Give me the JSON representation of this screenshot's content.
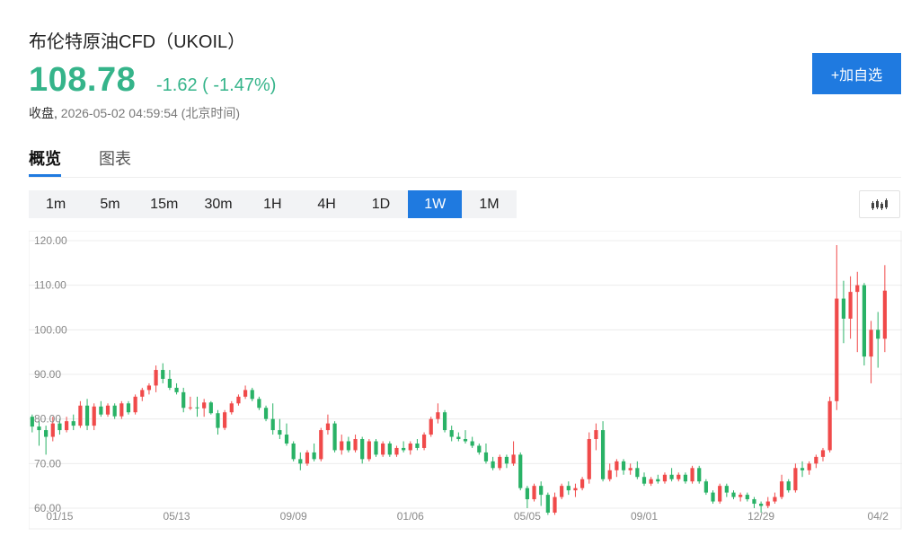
{
  "header": {
    "title": "布伦特原油CFD（UKOIL）",
    "price": "108.78",
    "change": "-1.62 ( -1.47%)",
    "status_label": "收盘,",
    "timestamp": "2026-05-02 04:59:54 (北京时间)",
    "add_watchlist_label": "+加自选"
  },
  "tabs": [
    {
      "label": "概览",
      "active": true
    },
    {
      "label": "图表",
      "active": false
    }
  ],
  "intervals": [
    {
      "label": "1m",
      "active": false
    },
    {
      "label": "5m",
      "active": false
    },
    {
      "label": "15m",
      "active": false
    },
    {
      "label": "30m",
      "active": false
    },
    {
      "label": "1H",
      "active": false
    },
    {
      "label": "4H",
      "active": false
    },
    {
      "label": "1D",
      "active": false
    },
    {
      "label": "1W",
      "active": true
    },
    {
      "label": "1M",
      "active": false
    }
  ],
  "colors": {
    "up": "#f04a4a",
    "down": "#29b266",
    "price_down": "#35b48a",
    "accent": "#1f7ae0",
    "grid": "#ececec",
    "axis_text": "#888888"
  },
  "icons": {
    "chart_type": "candlestick-icon"
  },
  "chart_data": {
    "type": "candlestick",
    "ylim": [
      60,
      120
    ],
    "y_ticks": [
      "60.00",
      "70.00",
      "80.00",
      "90.00",
      "100.00",
      "110.00",
      "120.00"
    ],
    "x_ticks": [
      {
        "label": "01/15",
        "index": 4
      },
      {
        "label": "05/13",
        "index": 21
      },
      {
        "label": "09/09",
        "index": 38
      },
      {
        "label": "01/06",
        "index": 55
      },
      {
        "label": "05/05",
        "index": 72
      },
      {
        "label": "09/01",
        "index": 89
      },
      {
        "label": "12/29",
        "index": 106
      },
      {
        "label": "04/2",
        "index": 123
      }
    ],
    "total_slots": 127,
    "candles": [
      [
        80.5,
        81.0,
        77.0,
        78.3
      ],
      [
        78.3,
        80.0,
        74.0,
        77.5
      ],
      [
        77.5,
        78.5,
        72.0,
        76.0
      ],
      [
        76.0,
        80.5,
        75.0,
        79.0
      ],
      [
        79.0,
        80.0,
        76.5,
        77.5
      ],
      [
        77.5,
        80.5,
        77.0,
        79.5
      ],
      [
        79.5,
        81.0,
        77.5,
        78.5
      ],
      [
        78.5,
        84.0,
        78.0,
        83.0
      ],
      [
        83.0,
        84.5,
        77.5,
        78.5
      ],
      [
        78.5,
        83.5,
        77.5,
        82.8
      ],
      [
        82.8,
        84.0,
        80.5,
        81.0
      ],
      [
        81.0,
        83.5,
        80.5,
        83.0
      ],
      [
        83.0,
        83.5,
        80.0,
        80.6
      ],
      [
        80.6,
        84.0,
        80.0,
        83.5
      ],
      [
        83.5,
        84.0,
        81.0,
        81.5
      ],
      [
        81.5,
        85.5,
        81.0,
        85.0
      ],
      [
        85.0,
        87.0,
        84.0,
        86.5
      ],
      [
        86.5,
        88.0,
        85.5,
        87.5
      ],
      [
        87.5,
        92.0,
        86.0,
        91.0
      ],
      [
        91.0,
        92.5,
        88.0,
        89.0
      ],
      [
        89.0,
        91.0,
        86.5,
        87.0
      ],
      [
        87.0,
        88.0,
        85.5,
        86.0
      ],
      [
        86.0,
        87.0,
        81.5,
        82.5
      ],
      [
        82.5,
        85.0,
        82.0,
        82.6
      ],
      [
        82.6,
        85.0,
        80.5,
        82.4
      ],
      [
        82.4,
        84.5,
        80.5,
        83.7
      ],
      [
        83.7,
        84.0,
        81.0,
        81.3
      ],
      [
        81.3,
        82.0,
        76.5,
        78.0
      ],
      [
        78.0,
        82.0,
        77.5,
        81.5
      ],
      [
        81.5,
        84.0,
        81.0,
        83.5
      ],
      [
        83.5,
        85.5,
        83.0,
        85.0
      ],
      [
        85.0,
        87.5,
        84.5,
        86.5
      ],
      [
        86.5,
        87.0,
        84.0,
        84.5
      ],
      [
        84.5,
        85.0,
        82.0,
        82.5
      ],
      [
        82.5,
        83.0,
        79.5,
        80.0
      ],
      [
        80.0,
        83.5,
        76.5,
        77.5
      ],
      [
        77.5,
        80.0,
        75.5,
        76.5
      ],
      [
        76.5,
        79.0,
        74.0,
        74.5
      ],
      [
        74.5,
        75.0,
        70.5,
        71.0
      ],
      [
        71.0,
        72.5,
        68.5,
        70.0
      ],
      [
        70.0,
        73.0,
        69.5,
        72.5
      ],
      [
        72.5,
        74.5,
        70.5,
        71.0
      ],
      [
        71.0,
        78.0,
        70.5,
        77.5
      ],
      [
        77.5,
        81.0,
        76.5,
        79.0
      ],
      [
        79.0,
        79.5,
        72.5,
        73.0
      ],
      [
        73.0,
        76.5,
        72.0,
        75.0
      ],
      [
        75.0,
        76.0,
        72.5,
        73.0
      ],
      [
        73.0,
        76.5,
        72.5,
        75.5
      ],
      [
        75.5,
        76.0,
        70.0,
        71.0
      ],
      [
        71.0,
        75.5,
        70.5,
        75.0
      ],
      [
        75.0,
        75.5,
        71.5,
        72.0
      ],
      [
        72.0,
        75.0,
        71.5,
        74.5
      ],
      [
        74.5,
        75.0,
        71.5,
        72.0
      ],
      [
        72.0,
        74.0,
        71.5,
        73.5
      ],
      [
        73.5,
        75.0,
        72.5,
        73.0
      ],
      [
        73.0,
        75.0,
        72.0,
        74.5
      ],
      [
        74.5,
        75.5,
        73.0,
        73.5
      ],
      [
        73.5,
        77.0,
        73.0,
        76.5
      ],
      [
        76.5,
        80.5,
        76.0,
        80.0
      ],
      [
        80.0,
        83.5,
        79.0,
        81.5
      ],
      [
        81.5,
        82.0,
        77.0,
        77.5
      ],
      [
        77.5,
        78.5,
        75.0,
        76.0
      ],
      [
        76.0,
        77.0,
        75.0,
        75.5
      ],
      [
        75.5,
        77.5,
        74.5,
        75.0
      ],
      [
        75.0,
        76.0,
        73.5,
        74.0
      ],
      [
        74.0,
        74.5,
        72.0,
        72.5
      ],
      [
        72.5,
        74.5,
        70.0,
        70.5
      ],
      [
        70.5,
        71.5,
        68.5,
        69.0
      ],
      [
        69.0,
        72.0,
        68.5,
        71.5
      ],
      [
        71.5,
        72.0,
        69.0,
        70.0
      ],
      [
        70.0,
        75.0,
        69.5,
        72.0
      ],
      [
        72.0,
        72.5,
        64.0,
        64.5
      ],
      [
        64.5,
        65.0,
        60.0,
        62.0
      ],
      [
        62.0,
        65.5,
        61.5,
        65.0
      ],
      [
        65.0,
        66.0,
        60.5,
        63.0
      ],
      [
        63.0,
        63.5,
        58.5,
        59.0
      ],
      [
        59.0,
        63.5,
        58.5,
        62.5
      ],
      [
        62.5,
        65.5,
        62.0,
        65.0
      ],
      [
        65.0,
        66.0,
        63.0,
        64.0
      ],
      [
        64.0,
        65.5,
        62.5,
        64.5
      ],
      [
        64.5,
        67.0,
        64.0,
        66.5
      ],
      [
        66.5,
        77.0,
        65.5,
        75.5
      ],
      [
        75.5,
        79.0,
        73.0,
        77.5
      ],
      [
        77.5,
        79.5,
        66.0,
        66.5
      ],
      [
        66.5,
        70.0,
        66.0,
        68.5
      ],
      [
        68.5,
        71.0,
        67.0,
        70.5
      ],
      [
        70.5,
        71.0,
        67.5,
        68.5
      ],
      [
        68.5,
        70.0,
        67.5,
        69.0
      ],
      [
        69.0,
        70.5,
        66.5,
        67.0
      ],
      [
        67.0,
        68.0,
        65.0,
        65.5
      ],
      [
        65.5,
        67.0,
        65.0,
        66.5
      ],
      [
        66.5,
        67.5,
        65.5,
        66.0
      ],
      [
        66.0,
        68.0,
        65.5,
        67.5
      ],
      [
        67.5,
        69.0,
        66.0,
        66.5
      ],
      [
        66.5,
        68.0,
        66.0,
        67.5
      ],
      [
        67.5,
        68.0,
        65.5,
        66.0
      ],
      [
        66.0,
        69.5,
        65.5,
        69.0
      ],
      [
        69.0,
        69.5,
        65.5,
        66.0
      ],
      [
        66.0,
        66.5,
        63.0,
        63.5
      ],
      [
        63.5,
        64.0,
        61.0,
        61.5
      ],
      [
        61.5,
        65.5,
        61.0,
        65.0
      ],
      [
        65.0,
        65.5,
        62.5,
        63.5
      ],
      [
        63.5,
        64.0,
        62.0,
        62.5
      ],
      [
        62.5,
        63.5,
        61.5,
        63.0
      ],
      [
        63.0,
        63.5,
        61.5,
        62.0
      ],
      [
        62.0,
        62.5,
        60.0,
        61.0
      ],
      [
        61.0,
        61.5,
        59.0,
        60.5
      ],
      [
        60.5,
        62.5,
        60.0,
        61.5
      ],
      [
        61.5,
        63.5,
        61.0,
        62.5
      ],
      [
        62.5,
        67.5,
        62.0,
        66.0
      ],
      [
        66.0,
        66.5,
        63.5,
        64.0
      ],
      [
        64.0,
        70.0,
        63.5,
        69.0
      ],
      [
        69.0,
        70.5,
        67.0,
        68.5
      ],
      [
        68.5,
        70.5,
        67.5,
        70.0
      ],
      [
        70.0,
        72.0,
        69.0,
        71.5
      ],
      [
        71.5,
        73.5,
        70.5,
        73.0
      ],
      [
        73.0,
        85.0,
        72.5,
        84.0
      ],
      [
        84.0,
        119.0,
        82.0,
        107.0
      ],
      [
        107.0,
        111.0,
        97.0,
        102.5
      ],
      [
        102.5,
        112.0,
        98.0,
        108.5
      ],
      [
        108.5,
        113.0,
        95.0,
        110.0
      ],
      [
        110.0,
        110.5,
        92.0,
        94.0
      ],
      [
        94.0,
        102.0,
        88.0,
        100.0
      ],
      [
        100.0,
        104.0,
        91.5,
        98.0
      ],
      [
        98.0,
        114.5,
        95.0,
        108.78
      ]
    ]
  }
}
